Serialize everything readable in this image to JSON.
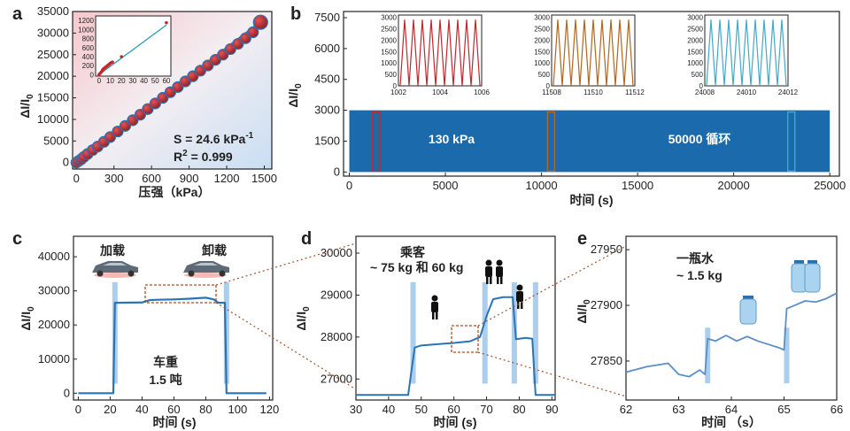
{
  "panels": {
    "a": "a",
    "b": "b",
    "c": "c",
    "d": "d",
    "e": "e"
  },
  "colors": {
    "accent_blue": "#2a74b5",
    "band_blue": "#1b6aac",
    "dot_red": "#b52a2f",
    "inset_red": "#c2272d",
    "inset_orange": "#b5651d",
    "inset_cyan": "#41a9c9",
    "guide_brown": "#a0522d",
    "highlight_blue": "#9cc6e9"
  },
  "chart_data": [
    {
      "id": "a",
      "type": "scatter",
      "ylabel_main": "ΔI/I",
      "ylabel_sub": "0",
      "xlabel": "压强（kPa）",
      "xlim": [
        -30,
        1560
      ],
      "ylim": [
        -1500,
        35000
      ],
      "xticks": [
        0,
        300,
        600,
        900,
        1200,
        1500
      ],
      "yticks": [
        0,
        5000,
        10000,
        15000,
        20000,
        25000,
        30000,
        35000
      ],
      "x": [
        0,
        20,
        40,
        60,
        90,
        130,
        170,
        220,
        270,
        330,
        390,
        450,
        510,
        570,
        630,
        690,
        750,
        810,
        870,
        930,
        990,
        1050,
        1110,
        1170,
        1230,
        1290,
        1350,
        1410,
        1470
      ],
      "y": [
        0,
        400,
        800,
        1300,
        2000,
        2900,
        3700,
        4800,
        5900,
        7200,
        8500,
        9800,
        11100,
        12400,
        13700,
        15000,
        16300,
        17500,
        18800,
        20000,
        21300,
        22500,
        23800,
        25000,
        26300,
        27500,
        28800,
        30200,
        32500
      ],
      "fit_line": {
        "x": [
          0,
          1470
        ],
        "y": [
          0,
          32500
        ]
      },
      "annotation_s": "S = 24.6 kPa",
      "annotation_s_sup": "-1",
      "annotation_r": "R",
      "annotation_r_sup": "2",
      "annotation_r_val": " = 0.999",
      "inset": {
        "xlim": [
          -3,
          64
        ],
        "ylim": [
          -30,
          1300
        ],
        "xticks": [
          0,
          10,
          20,
          30,
          40,
          50,
          60
        ],
        "yticks": [
          0,
          200,
          400,
          600,
          800,
          1000,
          1200
        ],
        "x": [
          0,
          1,
          2,
          3,
          4,
          5,
          6,
          7,
          8,
          9,
          10,
          11,
          12,
          20,
          60
        ],
        "y": [
          0,
          30,
          60,
          100,
          130,
          150,
          170,
          190,
          210,
          230,
          250,
          270,
          280,
          400,
          1150
        ],
        "fit_line": {
          "x": [
            0,
            60
          ],
          "y": [
            0,
            1100
          ]
        }
      }
    },
    {
      "id": "b",
      "type": "line",
      "ylabel_main": "ΔI/I",
      "ylabel_sub": "0",
      "xlabel": "时间 (s)",
      "xlim": [
        -300,
        25500
      ],
      "ylim": [
        -200,
        7800
      ],
      "xticks": [
        0,
        5000,
        10000,
        15000,
        20000,
        25000
      ],
      "yticks": [
        0,
        1500,
        3000,
        4500,
        6000,
        7500
      ],
      "band": {
        "x_start": 0,
        "x_end": 25000,
        "y_top": 3000
      },
      "annotations": [
        "130 kPa",
        "50000 循环"
      ],
      "highlight_windows": [
        [
          1002,
          1006
        ],
        [
          11508,
          11512
        ],
        [
          24008,
          24012
        ]
      ],
      "insets": [
        {
          "xticks": [
            1002,
            1004,
            1006
          ],
          "yticks": [
            0,
            500,
            1000,
            1500,
            2000,
            2500,
            3000
          ],
          "peaks": 9,
          "peak_value": 2900
        },
        {
          "xticks": [
            11508,
            11510,
            11512
          ],
          "yticks": [
            0,
            500,
            1000,
            1500,
            2000,
            2500,
            3000
          ],
          "peaks": 9,
          "peak_value": 2900
        },
        {
          "xticks": [
            24008,
            24010,
            24012
          ],
          "yticks": [
            0,
            500,
            1000,
            1500,
            2000,
            2500,
            3000
          ],
          "peaks": 9,
          "peak_value": 2900
        }
      ]
    },
    {
      "id": "c",
      "type": "line",
      "ylabel_main": "ΔI/I",
      "ylabel_sub": "0",
      "xlabel": "时间 (s)",
      "xlim": [
        -3,
        122
      ],
      "ylim": [
        -2000,
        46000
      ],
      "xticks": [
        0,
        10,
        20,
        30,
        40,
        50,
        60,
        70,
        80,
        90,
        100,
        110,
        120
      ],
      "yticks": [
        0,
        10000,
        20000,
        30000,
        40000
      ],
      "x": [
        0,
        22,
        23,
        24,
        40,
        45,
        50,
        60,
        70,
        80,
        85,
        88,
        92,
        93,
        94,
        118
      ],
      "y": [
        0,
        0,
        26500,
        26500,
        26600,
        27300,
        27400,
        27500,
        27700,
        28000,
        27500,
        26500,
        26500,
        0,
        0,
        0
      ],
      "labels": {
        "load": "加载",
        "unload": "卸载",
        "weight1": "车重",
        "weight2": "1.5 吨"
      }
    },
    {
      "id": "d",
      "type": "line",
      "ylabel_main": "ΔI/I",
      "ylabel_sub": "0",
      "xlabel": "时间 (s)",
      "xlim": [
        30,
        91
      ],
      "ylim": [
        26500,
        30400
      ],
      "xticks": [
        30,
        40,
        50,
        60,
        70,
        80,
        90
      ],
      "yticks": [
        27000,
        28000,
        29000,
        30000
      ],
      "x": [
        30,
        46,
        47,
        48,
        50,
        55,
        60,
        65,
        68,
        70,
        72,
        75,
        78,
        79,
        82,
        84,
        85,
        91
      ],
      "y": [
        26620,
        26620,
        27200,
        27750,
        27800,
        27830,
        27860,
        27900,
        28000,
        28500,
        28900,
        28950,
        28950,
        27950,
        27980,
        27960,
        26620,
        26620
      ],
      "labels": {
        "title1": "乘客",
        "title2": "~ 75 kg 和 60 kg"
      }
    },
    {
      "id": "e",
      "type": "line",
      "ylabel_main": "ΔI/I",
      "ylabel_sub": "0",
      "xlabel": "时间 （s）",
      "xlim": [
        62,
        66
      ],
      "ylim": [
        27815,
        27962
      ],
      "xticks": [
        62,
        63,
        64,
        65,
        66
      ],
      "yticks": [
        27850,
        27900,
        27950
      ],
      "x": [
        62,
        62.4,
        62.8,
        63.0,
        63.2,
        63.4,
        63.5,
        63.55,
        63.7,
        63.9,
        64.1,
        64.3,
        64.5,
        64.7,
        64.9,
        65.0,
        65.05,
        65.2,
        65.4,
        65.6,
        65.8,
        66
      ],
      "y": [
        27840,
        27845,
        27848,
        27838,
        27836,
        27842,
        27838,
        27870,
        27868,
        27873,
        27868,
        27872,
        27868,
        27865,
        27862,
        27860,
        27897,
        27900,
        27904,
        27903,
        27906,
        27911
      ],
      "labels": {
        "title1": "一瓶水",
        "title2": "~ 1.5 kg"
      }
    }
  ]
}
